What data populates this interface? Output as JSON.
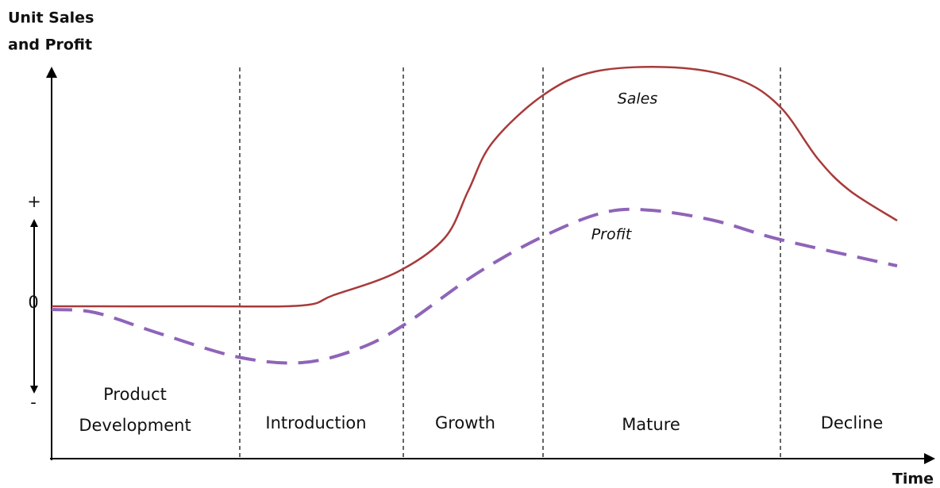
{
  "axes": {
    "y_label": [
      "Unit Sales",
      "and Profit"
    ],
    "x_label": "Time",
    "markers": [
      "+",
      "0",
      "-"
    ]
  },
  "stages": [
    [
      "Product",
      "Development"
    ],
    [
      "Introduction"
    ],
    [
      "Growth"
    ],
    [
      "Mature"
    ],
    [
      "Decline"
    ]
  ],
  "curves": [
    {
      "label": "Sales"
    },
    {
      "label": "Profit"
    }
  ]
}
